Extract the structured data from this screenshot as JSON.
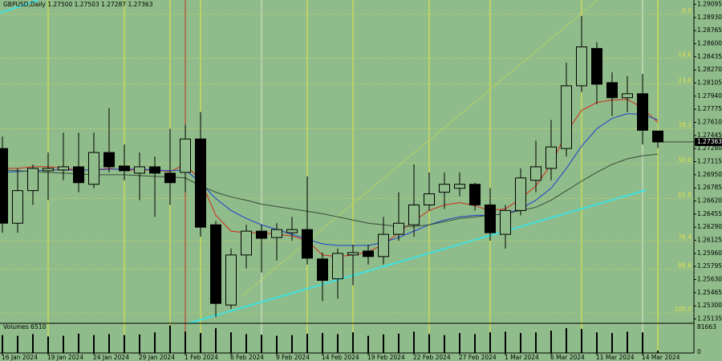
{
  "chart_data": {
    "type": "candlestick",
    "title": "GBPUSD,Daily  1.27500 1.27503 1.27287 1.27363",
    "categories": [
      "16 Jan 2024",
      null,
      null,
      "19 Jan 2024",
      null,
      null,
      "24 Jan 2024",
      null,
      null,
      "29 Jan 2024",
      null,
      null,
      "1 Feb 2024",
      null,
      null,
      "6 Feb 2024",
      null,
      null,
      "9 Feb 2024",
      null,
      null,
      "14 Feb 2024",
      null,
      null,
      "19 Feb 2024",
      null,
      null,
      "22 Feb 2024",
      null,
      null,
      "27 Feb 2024",
      null,
      null,
      "1 Mar 2024",
      null,
      null,
      "6 Mar 2024",
      null,
      null,
      "11 Mar 2024",
      null,
      null,
      "14 Mar 2024",
      null
    ],
    "open": [
      1.2728,
      1.2634,
      1.2675,
      1.27,
      1.2701,
      1.2705,
      1.2683,
      1.2723,
      1.2706,
      1.2697,
      1.2705,
      1.2697,
      1.2698,
      1.274,
      1.2632,
      1.2531,
      1.2594,
      1.2624,
      1.2616,
      1.2622,
      1.2626,
      1.2589,
      1.2564,
      1.2594,
      1.2599,
      1.2592,
      1.262,
      1.2632,
      1.2657,
      1.2673,
      1.2678,
      1.2683,
      1.2657,
      1.262,
      1.265,
      1.2688,
      1.2703,
      1.2728,
      1.2807,
      1.2854,
      1.2811,
      1.2792,
      1.2797,
      1.275
    ],
    "high": [
      1.2743,
      1.2703,
      1.2708,
      1.2723,
      1.2748,
      1.2748,
      1.2748,
      1.2779,
      1.2733,
      1.2723,
      1.2718,
      1.2753,
      1.2758,
      1.2774,
      1.2637,
      1.2602,
      1.2632,
      1.2632,
      1.2634,
      1.2642,
      1.2693,
      1.2597,
      1.2602,
      1.2607,
      1.2607,
      1.2642,
      1.2673,
      1.2708,
      1.2698,
      1.2698,
      1.2698,
      1.2685,
      1.2678,
      1.2657,
      1.2703,
      1.2738,
      1.2764,
      1.2836,
      1.2895,
      1.2862,
      1.2824,
      1.2819,
      1.2822,
      1.27503
    ],
    "low": [
      1.2622,
      1.2622,
      1.2657,
      1.2663,
      1.2688,
      1.2673,
      1.2678,
      1.2698,
      1.2688,
      1.2663,
      1.2642,
      1.2657,
      1.2673,
      1.2617,
      1.2516,
      1.2526,
      1.2577,
      1.2572,
      1.2587,
      1.2612,
      1.2582,
      1.2536,
      1.2539,
      1.2556,
      1.2582,
      1.2582,
      1.2612,
      1.2617,
      1.265,
      1.2652,
      1.2668,
      1.265,
      1.2612,
      1.2602,
      1.2644,
      1.2673,
      1.2688,
      1.2718,
      1.2799,
      1.2784,
      1.2769,
      1.2774,
      1.2733,
      1.27287
    ],
    "close": [
      1.2634,
      1.2675,
      1.2703,
      1.2703,
      1.2705,
      1.2685,
      1.2723,
      1.2705,
      1.27,
      1.2705,
      1.2697,
      1.2685,
      1.274,
      1.2629,
      1.2533,
      1.2594,
      1.2624,
      1.2615,
      1.2626,
      1.2626,
      1.259,
      1.2562,
      1.2596,
      1.2597,
      1.2592,
      1.262,
      1.2634,
      1.2657,
      1.2671,
      1.2683,
      1.2683,
      1.2657,
      1.2622,
      1.265,
      1.2691,
      1.2705,
      1.273,
      1.2807,
      1.2856,
      1.2809,
      1.2792,
      1.2797,
      1.2751,
      1.27363
    ],
    "indicators": [
      {
        "color": "#d02a1a",
        "values": [
          1.2703,
          1.2703,
          1.2705,
          1.2705,
          1.2703,
          1.2701,
          1.2701,
          1.2703,
          1.2701,
          1.2701,
          1.2701,
          1.2699,
          1.2708,
          1.2688,
          1.2644,
          1.2624,
          1.2622,
          1.2622,
          1.262,
          1.2618,
          1.2612,
          1.2594,
          1.2592,
          1.2594,
          1.2598,
          1.2607,
          1.2622,
          1.2637,
          1.265,
          1.2657,
          1.266,
          1.2656,
          1.265,
          1.2652,
          1.2665,
          1.2681,
          1.2708,
          1.2748,
          1.2776,
          1.2786,
          1.2789,
          1.279,
          1.2779,
          1.2761
        ]
      },
      {
        "color": "#1f3fcf",
        "values": [
          1.2698,
          1.2699,
          1.27,
          1.2701,
          1.2701,
          1.2701,
          1.2701,
          1.2702,
          1.2702,
          1.2702,
          1.2701,
          1.27,
          1.2701,
          1.2685,
          1.2665,
          1.265,
          1.264,
          1.2632,
          1.2626,
          1.262,
          1.2614,
          1.2608,
          1.2606,
          1.2606,
          1.2606,
          1.261,
          1.2616,
          1.2624,
          1.2632,
          1.2638,
          1.2642,
          1.2644,
          1.2644,
          1.2646,
          1.2652,
          1.2663,
          1.2678,
          1.2703,
          1.2731,
          1.2753,
          1.2766,
          1.2772,
          1.2771,
          1.2764
        ]
      },
      {
        "color": "#3a4a3a",
        "values": [
          1.2701,
          1.27,
          1.2699,
          1.2698,
          1.2697,
          1.2696,
          1.2695,
          1.2695,
          1.2695,
          1.2694,
          1.2693,
          1.2692,
          1.2691,
          1.2681,
          1.2673,
          1.2667,
          1.2663,
          1.2658,
          1.2655,
          1.2652,
          1.2649,
          1.2646,
          1.2642,
          1.2638,
          1.2634,
          1.2632,
          1.263,
          1.263,
          1.2632,
          1.2636,
          1.264,
          1.2642,
          1.2644,
          1.2646,
          1.265,
          1.2654,
          1.2663,
          1.2675,
          1.2687,
          1.2698,
          1.2708,
          1.2715,
          1.2719,
          1.2721
        ]
      }
    ],
    "levels": [
      {
        "value": 1.2897,
        "label": "0.0"
      },
      {
        "value": 1.2842,
        "label": "14.6"
      },
      {
        "value": 1.2809,
        "label": "23.6"
      },
      {
        "value": 1.2753,
        "label": "38.2"
      },
      {
        "value": 1.2709,
        "label": "50.0"
      },
      {
        "value": 1.2665,
        "label": "61.8"
      },
      {
        "value": 1.2612,
        "label": "76.4"
      },
      {
        "value": 1.2576,
        "label": "88.6"
      },
      {
        "value": 1.2521,
        "label": "100.0"
      }
    ],
    "ylim": [
      1.2508,
      1.2915
    ],
    "yticks": [
      1.29095,
      {
        "value": 1.2893,
        "label": "1.28930"
      },
      1.28765,
      {
        "value": 1.286,
        "label": "1.28600"
      },
      1.28435,
      {
        "value": 1.2827,
        "label": "1.28270"
      },
      1.28105,
      {
        "value": 1.2794,
        "label": "1.27940"
      },
      1.27775,
      {
        "value": 1.2761,
        "label": "1.27610"
      },
      1.27445,
      {
        "value": 1.2728,
        "label": "1.27280"
      },
      1.27115,
      {
        "value": 1.2695,
        "label": "1.26950"
      },
      1.26785,
      {
        "value": 1.2662,
        "label": "1.26620"
      },
      1.26455,
      {
        "value": 1.2629,
        "label": "1.26290"
      },
      1.26125,
      {
        "value": 1.2596,
        "label": "1.25960"
      },
      1.25795,
      {
        "value": 1.2563,
        "label": "1.25630"
      },
      1.25465,
      {
        "value": 1.253,
        "label": "1.25300"
      },
      1.25135
    ],
    "volume": {
      "title": "Volumes 6510",
      "values": [
        52000,
        50000,
        55000,
        48000,
        50000,
        56000,
        52000,
        55000,
        52000,
        54000,
        60000,
        80000,
        62000,
        58000,
        72000,
        60000,
        55000,
        53000,
        50000,
        52000,
        56000,
        58000,
        55000,
        60000,
        50000,
        54000,
        56000,
        62000,
        55000,
        52000,
        58000,
        55000,
        60000,
        62000,
        58000,
        60000,
        65000,
        72000,
        70000,
        60000,
        58000,
        62000,
        60000,
        6510
      ],
      "ylim": [
        0,
        81663
      ],
      "yticks": [
        0,
        81663
      ]
    }
  }
}
